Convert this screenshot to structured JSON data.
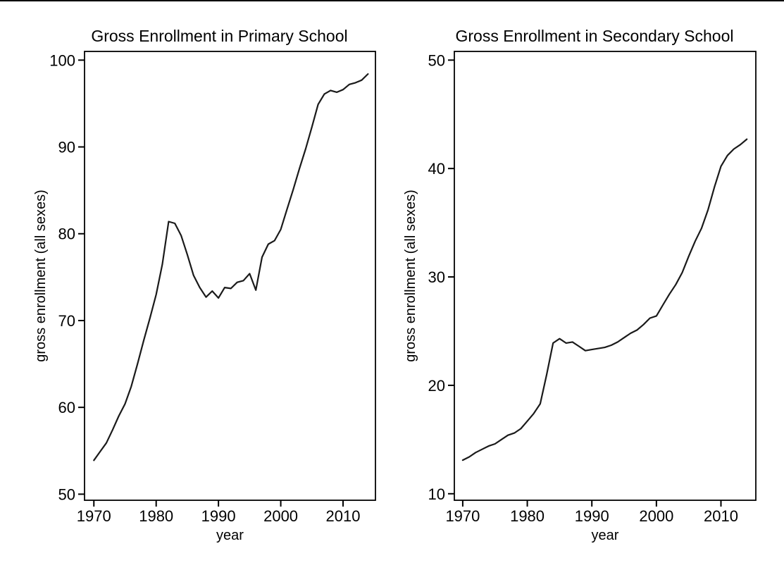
{
  "page": {
    "background": "#ffffff",
    "top_border_color": "#000000",
    "text_color": "#000000"
  },
  "chart_data": [
    {
      "type": "line",
      "title": "Gross Enrollment in Primary School",
      "xlabel": "year",
      "ylabel": "gross enrollment (all sexes)",
      "line_color": "#1a1a1a",
      "grid": false,
      "legend": "none",
      "xlim": [
        1968.5,
        2015.2
      ],
      "ylim": [
        49.3,
        101.0
      ],
      "xticks": [
        1970,
        1980,
        1990,
        2000,
        2010
      ],
      "yticks": [
        50,
        60,
        70,
        80,
        90,
        100
      ],
      "x": [
        1970,
        1971,
        1972,
        1973,
        1974,
        1975,
        1976,
        1977,
        1978,
        1979,
        1980,
        1981,
        1982,
        1983,
        1984,
        1985,
        1986,
        1987,
        1988,
        1989,
        1990,
        1991,
        1992,
        1993,
        1994,
        1995,
        1996,
        1997,
        1998,
        1999,
        2000,
        2001,
        2002,
        2003,
        2004,
        2005,
        2006,
        2007,
        2008,
        2009,
        2010,
        2011,
        2012,
        2013,
        2014
      ],
      "y": [
        53.9,
        54.9,
        55.9,
        57.4,
        59.0,
        60.4,
        62.4,
        65.0,
        67.7,
        70.3,
        73.0,
        76.5,
        81.4,
        81.2,
        79.8,
        77.6,
        75.2,
        73.8,
        72.7,
        73.4,
        72.6,
        73.8,
        73.7,
        74.4,
        74.6,
        75.4,
        73.5,
        77.3,
        78.8,
        79.2,
        80.5,
        82.8,
        85.1,
        87.5,
        89.8,
        92.3,
        94.9,
        96.1,
        96.5,
        96.3,
        96.6,
        97.2,
        97.4,
        97.7,
        98.4
      ]
    },
    {
      "type": "line",
      "title": "Gross Enrollment in Secondary School",
      "xlabel": "year",
      "ylabel": "gross enrollment (all sexes)",
      "line_color": "#1a1a1a",
      "grid": false,
      "legend": "none",
      "xlim": [
        1968.7,
        2015.4
      ],
      "ylim": [
        9.4,
        50.8
      ],
      "xticks": [
        1970,
        1980,
        1990,
        2000,
        2010
      ],
      "yticks": [
        10,
        20,
        30,
        40,
        50
      ],
      "x": [
        1970,
        1971,
        1972,
        1973,
        1974,
        1975,
        1976,
        1977,
        1978,
        1979,
        1980,
        1981,
        1982,
        1983,
        1984,
        1985,
        1986,
        1987,
        1988,
        1989,
        1990,
        1991,
        1992,
        1993,
        1994,
        1995,
        1996,
        1997,
        1998,
        1999,
        2000,
        2001,
        2002,
        2003,
        2004,
        2005,
        2006,
        2007,
        2008,
        2009,
        2010,
        2011,
        2012,
        2013,
        2014
      ],
      "y": [
        13.1,
        13.4,
        13.8,
        14.1,
        14.4,
        14.6,
        15.0,
        15.4,
        15.6,
        16.0,
        16.7,
        17.4,
        18.3,
        21.0,
        23.9,
        24.3,
        23.9,
        24.0,
        23.6,
        23.2,
        23.3,
        23.4,
        23.5,
        23.7,
        24.0,
        24.4,
        24.8,
        25.1,
        25.6,
        26.2,
        26.4,
        27.4,
        28.4,
        29.3,
        30.4,
        31.9,
        33.3,
        34.5,
        36.2,
        38.3,
        40.2,
        41.2,
        41.8,
        42.2,
        42.7
      ]
    }
  ]
}
